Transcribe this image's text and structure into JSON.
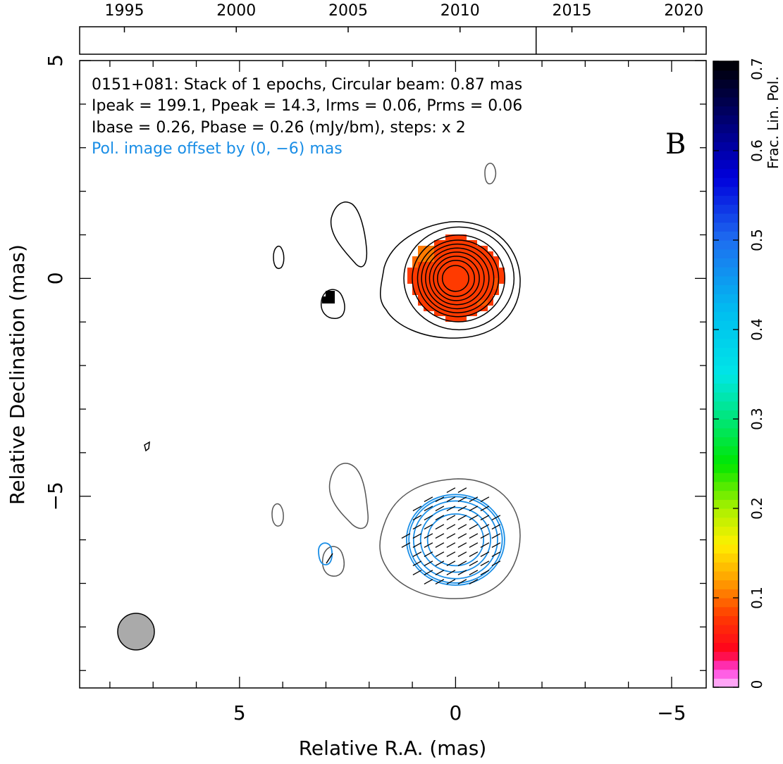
{
  "chart_data": {
    "type": "contour-map",
    "timeline": {
      "ticks": [
        "1995",
        "2000",
        "2005",
        "2010",
        "2015",
        "2020"
      ],
      "xlim": [
        1993,
        2021
      ],
      "epoch_marker": 2013.4
    },
    "info_lines": [
      "0151+081: Stack of 1 epochs, Circular beam: 0.87 mas",
      "Ipeak = 199.1, Ppeak = 14.3, Irms = 0.06, Prms = 0.06",
      "Ibase = 0.26, Pbase = 0.26 (mJy/bm), steps: x 2"
    ],
    "offset_note": "Pol. image offset by (0, −6) mas",
    "panel_label": "B",
    "x_axis": {
      "label": "Relative R.A. (mas)",
      "ticks": [
        "5",
        "0",
        "−5"
      ],
      "tick_values": [
        5,
        0,
        -5
      ],
      "xlim": [
        8.7,
        -5.8
      ],
      "reversed": true
    },
    "y_axis": {
      "label": "Relative Declination (mas)",
      "ticks": [
        "5",
        "0",
        "−5"
      ],
      "tick_values": [
        5,
        0,
        -5
      ],
      "ylim": [
        -9.4,
        5.0
      ]
    },
    "colorbar": {
      "label": "Frac. Lin. Pol.",
      "ticks": [
        "0",
        "0.1",
        "0.2",
        "0.3",
        "0.4",
        "0.5",
        "0.6",
        "0.7"
      ],
      "tick_values": [
        0,
        0.1,
        0.2,
        0.3,
        0.4,
        0.5,
        0.6,
        0.7
      ],
      "range": [
        0,
        0.7
      ]
    },
    "beam": {
      "ra": 7.4,
      "dec": -8.2,
      "diameter_mas": 0.87
    },
    "core": {
      "ra": 0,
      "dec": 0,
      "frac_pol": 0.07
    },
    "pixel_blob": {
      "ra": 2.9,
      "dec": -0.5,
      "frac_pol": 0.7
    },
    "intensity_contours_mas": [
      0.3,
      0.42,
      0.52,
      0.62,
      0.72,
      0.82,
      0.92,
      1.05,
      1.25
    ],
    "pol_contours_mas": [
      0.6,
      0.75,
      0.9,
      1.0,
      1.05
    ],
    "colors": {
      "intensity": "#000000",
      "intensity_offset": "#555555",
      "polarization": "#1a8ee6",
      "core_fill": "#ff3300",
      "core_edge": "#ff7a00",
      "beam": "#aaaaaa"
    }
  }
}
